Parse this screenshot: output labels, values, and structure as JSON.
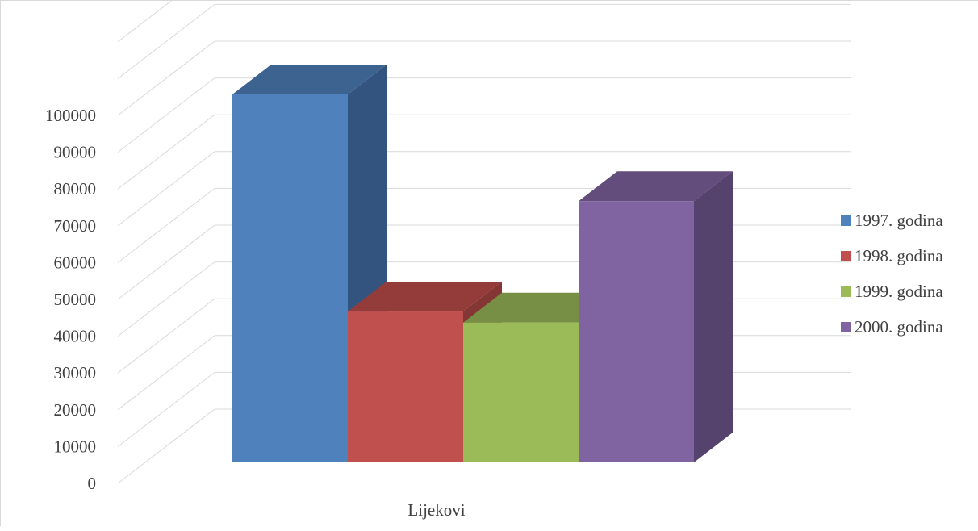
{
  "chart_data": {
    "type": "bar",
    "categories": [
      "Lijekovi"
    ],
    "series": [
      {
        "name": "1997. godina",
        "values": [
          100000
        ],
        "color": "#4F81BD",
        "side": "#345480",
        "top": "#3D6391"
      },
      {
        "name": "1998. godina",
        "values": [
          41000
        ],
        "color": "#C0504D",
        "side": "#833634",
        "top": "#943C3A"
      },
      {
        "name": "1999. godina",
        "values": [
          38000
        ],
        "color": "#9BBB59",
        "side": "#6A7F3C",
        "top": "#778F44"
      },
      {
        "name": "2000. godina",
        "values": [
          71000
        ],
        "color": "#8064A2",
        "side": "#56436D",
        "top": "#634D7C"
      }
    ],
    "y_ticks": [
      "0",
      "10000",
      "20000",
      "30000",
      "40000",
      "50000",
      "60000",
      "70000",
      "80000",
      "90000",
      "100000"
    ],
    "ylim": [
      0,
      120000
    ],
    "grid": true,
    "legend_position": "right",
    "title": "",
    "xlabel": "",
    "ylabel": ""
  }
}
